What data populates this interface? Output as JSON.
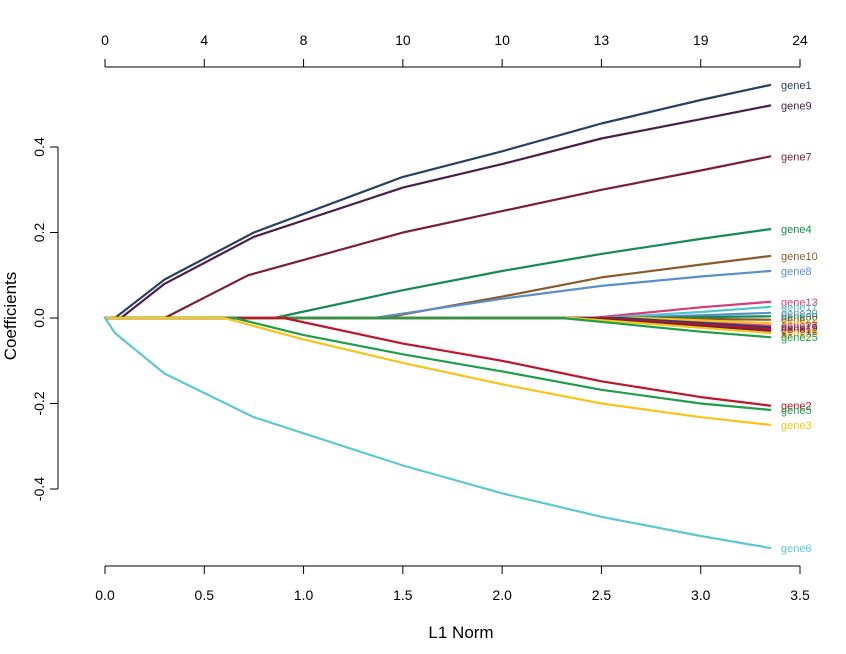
{
  "chart_data": {
    "type": "line",
    "xlabel": "L1 Norm",
    "ylabel": "Coefficients",
    "xlim": [
      0,
      3.5
    ],
    "ylim": [
      -0.6,
      0.55
    ],
    "x_ticks": [
      "0.0",
      "0.5",
      "1.0",
      "1.5",
      "2.0",
      "2.5",
      "3.0",
      "3.5"
    ],
    "y_ticks": [
      "-0.4",
      "-0.2",
      "0.0",
      "0.2",
      "0.4"
    ],
    "top_ticks": [
      "0",
      "4",
      "8",
      "10",
      "10",
      "13",
      "19",
      "24"
    ],
    "grid": false,
    "series": [
      {
        "name": "gene1",
        "color": "#2a3f66",
        "points": [
          [
            0,
            0
          ],
          [
            0.05,
            0
          ],
          [
            0.3,
            0.09
          ],
          [
            0.75,
            0.2
          ],
          [
            1.5,
            0.33
          ],
          [
            2.0,
            0.39
          ],
          [
            2.5,
            0.455
          ],
          [
            3.0,
            0.51
          ],
          [
            3.35,
            0.545
          ]
        ]
      },
      {
        "name": "gene9",
        "color": "#4a1f45",
        "points": [
          [
            0,
            0
          ],
          [
            0.08,
            0
          ],
          [
            0.3,
            0.08
          ],
          [
            0.75,
            0.19
          ],
          [
            1.5,
            0.305
          ],
          [
            2.0,
            0.36
          ],
          [
            2.5,
            0.42
          ],
          [
            3.0,
            0.465
          ],
          [
            3.35,
            0.497
          ]
        ]
      },
      {
        "name": "gene7",
        "color": "#7a1f3a",
        "points": [
          [
            0,
            0
          ],
          [
            0.3,
            0
          ],
          [
            0.72,
            0.1
          ],
          [
            1.5,
            0.2
          ],
          [
            2.0,
            0.25
          ],
          [
            2.5,
            0.3
          ],
          [
            3.0,
            0.345
          ],
          [
            3.35,
            0.378
          ]
        ]
      },
      {
        "name": "gene4",
        "color": "#178a52",
        "points": [
          [
            0,
            0
          ],
          [
            0.85,
            0
          ],
          [
            1.5,
            0.065
          ],
          [
            2.0,
            0.11
          ],
          [
            2.5,
            0.15
          ],
          [
            3.0,
            0.185
          ],
          [
            3.35,
            0.208
          ]
        ]
      },
      {
        "name": "gene10",
        "color": "#8b5a2b",
        "points": [
          [
            0,
            0
          ],
          [
            1.4,
            0
          ],
          [
            2.0,
            0.05
          ],
          [
            2.5,
            0.095
          ],
          [
            3.0,
            0.125
          ],
          [
            3.35,
            0.145
          ]
        ]
      },
      {
        "name": "gene8",
        "color": "#5b8fc9",
        "points": [
          [
            0,
            0
          ],
          [
            1.35,
            0
          ],
          [
            2.0,
            0.045
          ],
          [
            2.5,
            0.075
          ],
          [
            3.0,
            0.097
          ],
          [
            3.35,
            0.11
          ]
        ]
      },
      {
        "name": "gene13",
        "color": "#d63a7a",
        "points": [
          [
            0,
            0
          ],
          [
            2.45,
            0
          ],
          [
            3.0,
            0.025
          ],
          [
            3.35,
            0.038
          ]
        ]
      },
      {
        "name": "gene17",
        "color": "#4fc4cf",
        "points": [
          [
            0,
            0
          ],
          [
            2.5,
            0
          ],
          [
            3.0,
            0.014
          ],
          [
            3.35,
            0.026
          ]
        ]
      },
      {
        "name": "gene20",
        "color": "#5b8fc9",
        "points": [
          [
            0,
            0
          ],
          [
            2.6,
            0
          ],
          [
            3.35,
            0.012
          ]
        ]
      },
      {
        "name": "gene30",
        "color": "#178a52",
        "points": [
          [
            0,
            0
          ],
          [
            2.6,
            0
          ],
          [
            3.35,
            0.004
          ]
        ]
      },
      {
        "name": "gene22",
        "color": "#8b5a2b",
        "points": [
          [
            0,
            0
          ],
          [
            2.6,
            0
          ],
          [
            3.35,
            -0.004
          ]
        ]
      },
      {
        "name": "gene14",
        "color": "#f5c518",
        "points": [
          [
            0,
            0
          ],
          [
            2.7,
            0
          ],
          [
            3.35,
            -0.012
          ]
        ]
      },
      {
        "name": "gene27",
        "color": "#d63a7a",
        "points": [
          [
            0,
            0
          ],
          [
            2.5,
            0
          ],
          [
            3.35,
            -0.018
          ]
        ]
      },
      {
        "name": "gene19",
        "color": "#2a3f66",
        "points": [
          [
            0,
            0
          ],
          [
            2.6,
            0
          ],
          [
            3.35,
            -0.022
          ]
        ]
      },
      {
        "name": "gene12",
        "color": "#c0142a",
        "points": [
          [
            0,
            0
          ],
          [
            2.5,
            0
          ],
          [
            3.35,
            -0.026
          ]
        ]
      },
      {
        "name": "gene16",
        "color": "#7a1f3a",
        "points": [
          [
            0,
            0
          ],
          [
            2.45,
            0
          ],
          [
            3.35,
            -0.03
          ]
        ]
      },
      {
        "name": "gene29",
        "color": "#f5c518",
        "points": [
          [
            0,
            0
          ],
          [
            2.35,
            0
          ],
          [
            3.35,
            -0.035
          ]
        ]
      },
      {
        "name": "gene25",
        "color": "#1f9e4a",
        "points": [
          [
            0,
            0
          ],
          [
            2.3,
            0
          ],
          [
            3.0,
            -0.032
          ],
          [
            3.35,
            -0.045
          ]
        ]
      },
      {
        "name": "gene2",
        "color": "#c0142a",
        "points": [
          [
            0,
            0
          ],
          [
            0.9,
            0
          ],
          [
            1.5,
            -0.06
          ],
          [
            2.0,
            -0.1
          ],
          [
            2.5,
            -0.148
          ],
          [
            3.0,
            -0.185
          ],
          [
            3.35,
            -0.205
          ]
        ]
      },
      {
        "name": "gene5",
        "color": "#1f9e4a",
        "points": [
          [
            0,
            0
          ],
          [
            0.65,
            0
          ],
          [
            1.0,
            -0.04
          ],
          [
            1.5,
            -0.085
          ],
          [
            2.0,
            -0.125
          ],
          [
            2.5,
            -0.168
          ],
          [
            3.0,
            -0.2
          ],
          [
            3.35,
            -0.215
          ]
        ]
      },
      {
        "name": "gene3",
        "color": "#f5c518",
        "points": [
          [
            0,
            0
          ],
          [
            0.6,
            0
          ],
          [
            1.0,
            -0.05
          ],
          [
            1.5,
            -0.105
          ],
          [
            2.0,
            -0.155
          ],
          [
            2.5,
            -0.2
          ],
          [
            3.0,
            -0.232
          ],
          [
            3.35,
            -0.25
          ]
        ]
      },
      {
        "name": "gene6",
        "color": "#5bc8d4",
        "points": [
          [
            0,
            0
          ],
          [
            0.05,
            -0.035
          ],
          [
            0.3,
            -0.13
          ],
          [
            0.75,
            -0.232
          ],
          [
            1.5,
            -0.345
          ],
          [
            2.0,
            -0.41
          ],
          [
            2.5,
            -0.465
          ],
          [
            3.0,
            -0.51
          ],
          [
            3.35,
            -0.538
          ]
        ]
      }
    ]
  }
}
